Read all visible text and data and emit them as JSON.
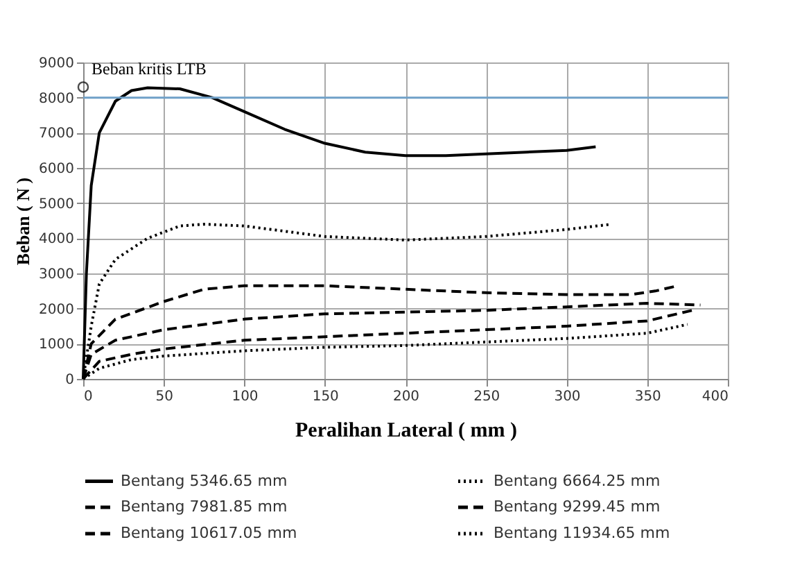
{
  "chart_data": {
    "type": "line",
    "xlabel": "Peralihan Lateral ( mm )",
    "ylabel": "Beban ( N )",
    "xlim": [
      0,
      400
    ],
    "xticks": [
      0,
      50,
      100,
      150,
      200,
      250,
      300,
      350,
      400
    ],
    "ylim": [
      0,
      9000
    ],
    "yticks": [
      0,
      1000,
      2000,
      3000,
      4000,
      5000,
      6000,
      7000,
      8000,
      9000
    ],
    "grid": true,
    "legend": "bottom",
    "marker": "none",
    "ref_lines": [
      {
        "axis": "y",
        "value": 8000,
        "color": "#6fa0c8"
      }
    ],
    "annotations": [
      {
        "text": "Beban kritis LTB",
        "x": 0,
        "y": 8300
      }
    ],
    "series": [
      {
        "name": "Bentang 5346.65 mm",
        "color": "#000000",
        "line_style": "solid",
        "x": [
          0,
          2,
          5,
          10,
          20,
          30,
          40,
          60,
          80,
          100,
          125,
          150,
          175,
          200,
          225,
          250,
          275,
          300,
          318
        ],
        "values": [
          0,
          3000,
          5500,
          7000,
          7900,
          8200,
          8280,
          8250,
          8000,
          7600,
          7100,
          6700,
          6450,
          6350,
          6350,
          6400,
          6450,
          6500,
          6600
        ]
      },
      {
        "name": "Bentang 6664.25 mm",
        "color": "#000000",
        "line_style": "dotted",
        "x": [
          0,
          5,
          10,
          20,
          40,
          60,
          75,
          100,
          125,
          150,
          200,
          250,
          300,
          328
        ],
        "values": [
          0,
          1500,
          2700,
          3400,
          4000,
          4350,
          4400,
          4350,
          4200,
          4050,
          3950,
          4050,
          4250,
          4400
        ]
      },
      {
        "name": "Bentang 7981.85 mm",
        "color": "#000000",
        "line_style": "dashed",
        "x": [
          0,
          5,
          20,
          50,
          75,
          100,
          150,
          200,
          250,
          300,
          340,
          355,
          369
        ],
        "values": [
          0,
          1000,
          1700,
          2200,
          2550,
          2650,
          2650,
          2550,
          2450,
          2400,
          2400,
          2500,
          2650
        ]
      },
      {
        "name": "Bentang 9299.45 mm",
        "color": "#000000",
        "line_style": "dashed",
        "x": [
          0,
          5,
          20,
          50,
          100,
          150,
          200,
          250,
          300,
          350,
          383
        ],
        "values": [
          0,
          700,
          1100,
          1400,
          1700,
          1850,
          1900,
          1950,
          2050,
          2150,
          2100
        ]
      },
      {
        "name": "Bentang 10617.05 mm",
        "color": "#000000",
        "line_style": "dashed",
        "x": [
          0,
          10,
          30,
          50,
          100,
          150,
          200,
          250,
          300,
          350,
          378
        ],
        "values": [
          0,
          500,
          700,
          850,
          1100,
          1200,
          1300,
          1400,
          1500,
          1650,
          1950
        ]
      },
      {
        "name": "Bentang 11934.65 mm",
        "color": "#000000",
        "line_style": "dotted",
        "x": [
          0,
          10,
          30,
          50,
          100,
          150,
          200,
          250,
          300,
          350,
          375
        ],
        "values": [
          0,
          300,
          550,
          650,
          800,
          900,
          950,
          1050,
          1150,
          1300,
          1550
        ]
      }
    ]
  }
}
